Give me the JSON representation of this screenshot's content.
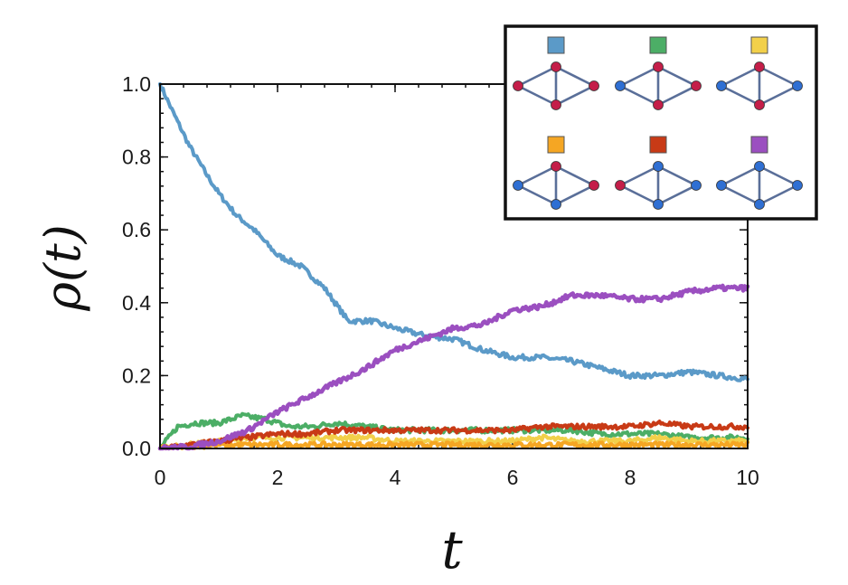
{
  "chart_data": {
    "type": "line",
    "xlabel": "t",
    "ylabel": "ρ(t)",
    "xlim": [
      0,
      10
    ],
    "ylim": [
      0,
      1
    ],
    "xticks": [
      "0",
      "2",
      "4",
      "6",
      "8",
      "10"
    ],
    "yticks": [
      "0.0",
      "0.2",
      "0.4",
      "0.6",
      "0.8",
      "1.0"
    ],
    "grid": false,
    "legend_position": "top-right",
    "series": [
      {
        "color": "#5b9ac8",
        "x": [
          0,
          0.2,
          0.5,
          0.8,
          1,
          1.3,
          1.6,
          2,
          2.4,
          2.8,
          3.2,
          3.6,
          4,
          4.5,
          5,
          5.5,
          6,
          6.5,
          7,
          7.5,
          8,
          8.5,
          9,
          9.5,
          10
        ],
        "y": [
          1.0,
          0.93,
          0.83,
          0.75,
          0.7,
          0.64,
          0.6,
          0.53,
          0.5,
          0.44,
          0.35,
          0.35,
          0.33,
          0.31,
          0.3,
          0.27,
          0.25,
          0.25,
          0.24,
          0.22,
          0.2,
          0.2,
          0.21,
          0.2,
          0.19
        ],
        "legend_nodes": [
          "red",
          "red",
          "red",
          "red"
        ]
      },
      {
        "color": "#4cae66",
        "x": [
          0,
          0.3,
          0.6,
          1,
          1.4,
          1.8,
          2.2,
          2.6,
          3,
          3.5,
          4,
          4.5,
          5,
          5.5,
          6,
          6.5,
          7,
          7.5,
          8,
          8.5,
          9,
          9.5,
          10
        ],
        "y": [
          0,
          0.06,
          0.07,
          0.07,
          0.09,
          0.08,
          0.06,
          0.06,
          0.07,
          0.06,
          0.05,
          0.05,
          0.05,
          0.05,
          0.05,
          0.05,
          0.05,
          0.04,
          0.04,
          0.04,
          0.03,
          0.03,
          0.03
        ],
        "legend_nodes": [
          "blue",
          "red",
          "red",
          "red"
        ]
      },
      {
        "color": "#f2d04a",
        "x": [
          0,
          0.5,
          1,
          1.5,
          2,
          2.5,
          3,
          3.5,
          4,
          4.5,
          5,
          5.5,
          6,
          6.5,
          7,
          7.5,
          8,
          8.5,
          9,
          9.5,
          10
        ],
        "y": [
          0,
          0.01,
          0.02,
          0.03,
          0.03,
          0.03,
          0.03,
          0.03,
          0.02,
          0.02,
          0.02,
          0.02,
          0.02,
          0.03,
          0.02,
          0.02,
          0.02,
          0.03,
          0.02,
          0.02,
          0.02
        ],
        "legend_nodes": [
          "blue",
          "red",
          "blue",
          "red"
        ]
      },
      {
        "color": "#f5a623",
        "x": [
          0,
          0.5,
          1,
          1.5,
          2,
          2.5,
          3,
          3.5,
          4,
          4.5,
          5,
          5.5,
          6,
          6.5,
          7,
          7.5,
          8,
          8.5,
          9,
          9.5,
          10
        ],
        "y": [
          0,
          0.005,
          0.01,
          0.01,
          0.01,
          0.01,
          0.01,
          0.01,
          0.01,
          0.01,
          0.01,
          0.01,
          0.01,
          0.01,
          0.01,
          0.01,
          0.01,
          0.01,
          0.01,
          0.01,
          0.01
        ],
        "legend_nodes": [
          "blue",
          "red",
          "red",
          "blue"
        ]
      },
      {
        "color": "#c83a16",
        "x": [
          0,
          0.5,
          1,
          1.5,
          2,
          2.5,
          3,
          3.5,
          4,
          4.5,
          5,
          5.5,
          6,
          6.5,
          7,
          7.5,
          8,
          8.5,
          9,
          9.5,
          10
        ],
        "y": [
          0,
          0.01,
          0.02,
          0.03,
          0.04,
          0.04,
          0.05,
          0.05,
          0.05,
          0.05,
          0.05,
          0.05,
          0.05,
          0.06,
          0.06,
          0.06,
          0.06,
          0.07,
          0.06,
          0.06,
          0.06
        ],
        "legend_nodes": [
          "red",
          "blue",
          "blue",
          "blue"
        ]
      },
      {
        "color": "#9b4fc0",
        "x": [
          0,
          0.5,
          1,
          1.5,
          2,
          2.5,
          3,
          3.5,
          4,
          4.5,
          5,
          5.5,
          6,
          6.5,
          7,
          7.5,
          8,
          8.5,
          9,
          9.5,
          10
        ],
        "y": [
          0,
          0.005,
          0.02,
          0.05,
          0.1,
          0.14,
          0.18,
          0.22,
          0.27,
          0.3,
          0.33,
          0.34,
          0.38,
          0.39,
          0.42,
          0.42,
          0.41,
          0.41,
          0.43,
          0.44,
          0.44
        ],
        "legend_nodes": [
          "blue",
          "blue",
          "blue",
          "blue"
        ]
      }
    ]
  },
  "colors": {
    "node_red": "#c41e49",
    "node_blue": "#2f6fd3",
    "edge": "#5a6f99"
  }
}
